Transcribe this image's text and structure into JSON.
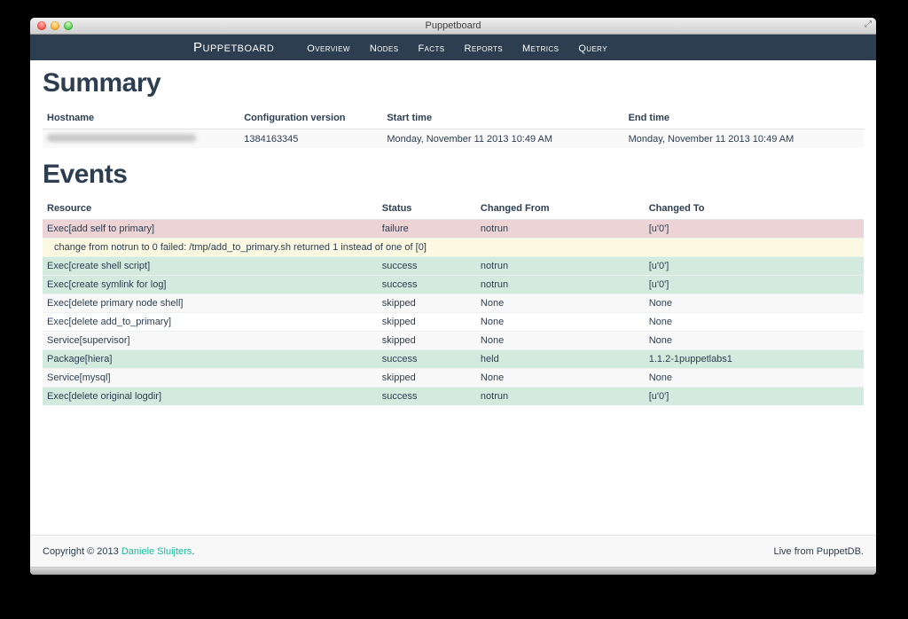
{
  "window": {
    "title": "Puppetboard"
  },
  "navbar": {
    "brand": "Puppetboard",
    "items": [
      {
        "label": "Overview"
      },
      {
        "label": "Nodes"
      },
      {
        "label": "Facts"
      },
      {
        "label": "Reports"
      },
      {
        "label": "Metrics"
      },
      {
        "label": "Query"
      }
    ]
  },
  "summary": {
    "heading": "Summary",
    "columns": [
      "Hostname",
      "Configuration version",
      "Start time",
      "End time"
    ],
    "row": {
      "hostname_redacted": true,
      "configuration_version": "1384163345",
      "start_time": "Monday, November 11 2013 10:49 AM",
      "end_time": "Monday, November 11 2013 10:49 AM"
    }
  },
  "events": {
    "heading": "Events",
    "columns": [
      "Resource",
      "Status",
      "Changed From",
      "Changed To"
    ],
    "rows": [
      {
        "type": "failure",
        "resource": "Exec[add self to primary]",
        "status": "failure",
        "changed_from": "notrun",
        "changed_to": "[u'0']"
      },
      {
        "type": "failure-detail",
        "detail": "change from notrun to 0 failed: /tmp/add_to_primary.sh returned 1 instead of one of [0]"
      },
      {
        "type": "success",
        "resource": "Exec[create shell script]",
        "status": "success",
        "changed_from": "notrun",
        "changed_to": "[u'0']"
      },
      {
        "type": "success",
        "resource": "Exec[create symlink for log]",
        "status": "success",
        "changed_from": "notrun",
        "changed_to": "[u'0']"
      },
      {
        "type": "skipped",
        "resource": "Exec[delete primary node shell]",
        "status": "skipped",
        "changed_from": "None",
        "changed_to": "None"
      },
      {
        "type": "skipped",
        "resource": "Exec[delete add_to_primary]",
        "status": "skipped",
        "changed_from": "None",
        "changed_to": "None"
      },
      {
        "type": "skipped",
        "resource": "Service[supervisor]",
        "status": "skipped",
        "changed_from": "None",
        "changed_to": "None"
      },
      {
        "type": "success",
        "resource": "Package[hiera]",
        "status": "success",
        "changed_from": "held",
        "changed_to": "1.1.2-1puppetlabs1"
      },
      {
        "type": "skipped",
        "resource": "Service[mysql]",
        "status": "skipped",
        "changed_from": "None",
        "changed_to": "None"
      },
      {
        "type": "success",
        "resource": "Exec[delete original logdir]",
        "status": "success",
        "changed_from": "notrun",
        "changed_to": "[u'0']"
      }
    ]
  },
  "footer": {
    "copyright_prefix": "Copyright © 2013 ",
    "copyright_link": "Daniele Sluijters",
    "copyright_suffix": ".",
    "right_text": "Live from PuppetDB."
  },
  "colors": {
    "navbar_bg": "#2c3e50",
    "text": "#2c3e50",
    "accent_link": "#18bc9c",
    "failure_row_bg": "#ecd4d6",
    "warning_row_bg": "#fbf9e2",
    "success_row_bg": "#d3ebdf",
    "striped_row_bg": "#f9f9f9"
  }
}
